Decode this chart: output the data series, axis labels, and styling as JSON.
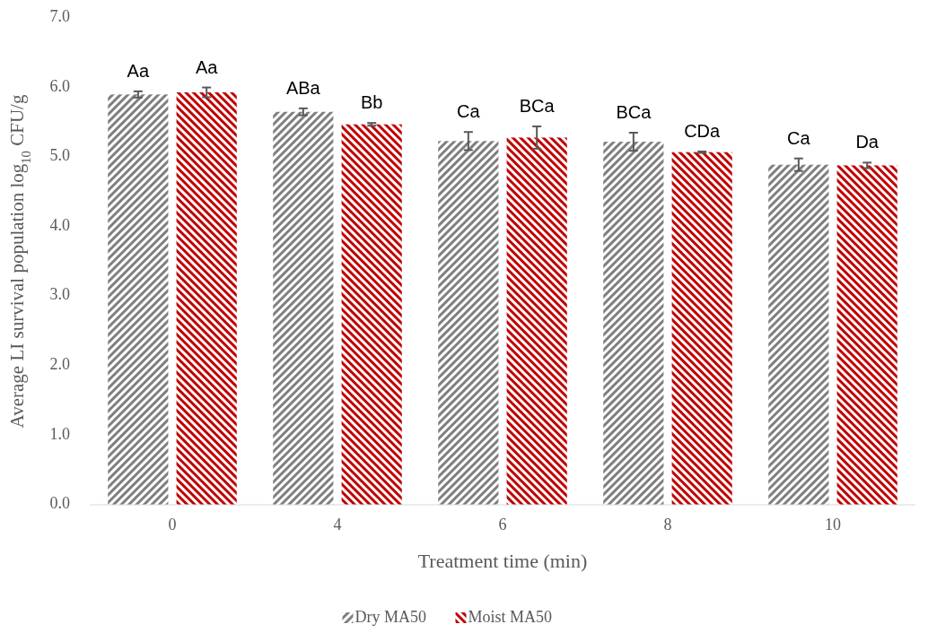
{
  "chart_data": {
    "type": "bar",
    "xlabel": "Treatment time (min)",
    "ylabel": "Average LI survival population log$_{10}$ CFU/g",
    "categories": [
      "0",
      "4",
      "6",
      "8",
      "10"
    ],
    "series": [
      {
        "name": "Dry MA50",
        "color": "#7f7f7f",
        "values": [
          5.9,
          5.65,
          5.23,
          5.22,
          4.89
        ],
        "errors": [
          0.045,
          0.05,
          0.13,
          0.13,
          0.09
        ]
      },
      {
        "name": "Moist MA50",
        "color": "#c00000",
        "values": [
          5.93,
          5.47,
          5.28,
          5.07,
          4.88
        ],
        "errors": [
          0.07,
          0.02,
          0.16,
          0.01,
          0.04
        ]
      }
    ],
    "ylim": [
      0,
      7
    ],
    "yticks": [
      {
        "value": 0,
        "label": "0.0"
      },
      {
        "value": 1,
        "label": "1.0"
      },
      {
        "value": 2,
        "label": "2.0"
      },
      {
        "value": 3,
        "label": "3.0"
      },
      {
        "value": 4,
        "label": "4.0"
      },
      {
        "value": 5,
        "label": "5.0"
      },
      {
        "value": 6,
        "label": "6.0"
      },
      {
        "value": 7,
        "label": "7.0"
      }
    ],
    "annotations": [
      "Aa",
      "Aa",
      "ABa",
      "Bb",
      "Ca",
      "BCa",
      "BCa",
      "CDa",
      "Ca",
      "Da"
    ],
    "legend": "bottom"
  }
}
